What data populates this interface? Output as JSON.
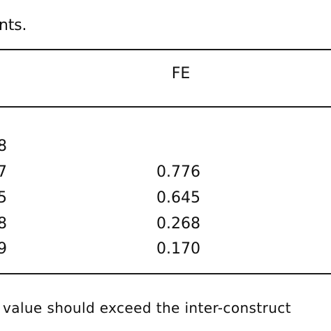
{
  "caption": "nts.",
  "table": {
    "fe_header": "FE",
    "rows": [
      {
        "left": "8",
        "fe": ""
      },
      {
        "left": "7",
        "fe": "0.776"
      },
      {
        "left": "5",
        "fe": "0.645"
      },
      {
        "left": "8",
        "fe": "0.268"
      },
      {
        "left": "9",
        "fe": "0.170"
      }
    ]
  },
  "footnote": "value should exceed the inter-construct"
}
